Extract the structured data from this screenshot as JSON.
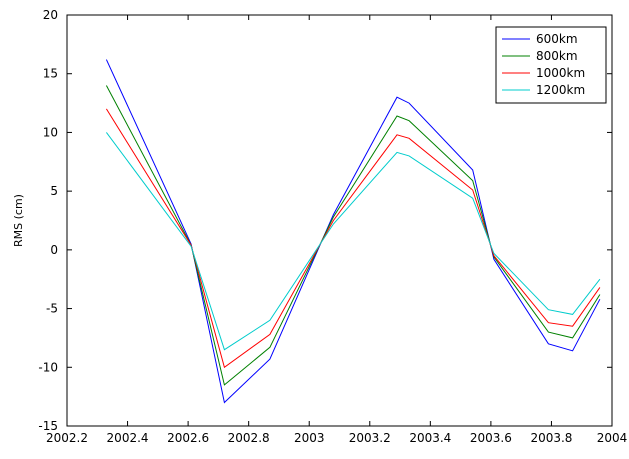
{
  "chart_data": {
    "type": "line",
    "title": "",
    "xlabel": "",
    "ylabel": "RMS (cm)",
    "xlim": [
      2002.2,
      2004
    ],
    "ylim": [
      -15,
      20
    ],
    "xticks": [
      2002.2,
      2002.4,
      2002.6,
      2002.8,
      2003,
      2003.2,
      2003.4,
      2003.6,
      2003.8,
      2004
    ],
    "xtick_labels": [
      "2002.2",
      "2002.4",
      "2002.6",
      "2002.8",
      "2003",
      "2003.2",
      "2003.4",
      "2003.6",
      "2003.8",
      "2004"
    ],
    "yticks": [
      -15,
      -10,
      -5,
      0,
      5,
      10,
      15,
      20
    ],
    "ytick_labels": [
      "-15",
      "-10",
      "-5",
      "0",
      "5",
      "10",
      "15",
      "20"
    ],
    "grid": false,
    "legend_position": "top-right",
    "x": [
      2002.33,
      2002.61,
      2002.72,
      2002.87,
      2003.08,
      2003.29,
      2003.33,
      2003.54,
      2003.61,
      2003.79,
      2003.87,
      2003.96
    ],
    "series": [
      {
        "name": "600km",
        "color": "#0000ff",
        "values": [
          16.2,
          0.5,
          -13.0,
          -9.3,
          3.0,
          13.0,
          12.5,
          6.8,
          -0.8,
          -8.0,
          -8.6,
          -4.2
        ]
      },
      {
        "name": "800km",
        "color": "#008000",
        "values": [
          14.0,
          0.4,
          -11.5,
          -8.3,
          2.8,
          11.4,
          11.0,
          5.9,
          -0.6,
          -7.0,
          -7.5,
          -3.8
        ]
      },
      {
        "name": "1000km",
        "color": "#ff0000",
        "values": [
          12.0,
          0.4,
          -10.0,
          -7.2,
          2.5,
          9.8,
          9.5,
          5.1,
          -0.5,
          -6.2,
          -6.5,
          -3.2
        ]
      },
      {
        "name": "1200km",
        "color": "#00cccc",
        "values": [
          10.0,
          0.3,
          -8.5,
          -6.0,
          2.2,
          8.3,
          8.0,
          4.4,
          -0.3,
          -5.1,
          -5.5,
          -2.5
        ]
      }
    ]
  }
}
